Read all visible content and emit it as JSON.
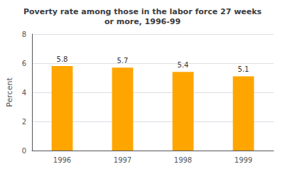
{
  "chart_data": {
    "type": "bar",
    "title": "Poverty rate among those in the labor force 27 weeks\nor more, 1996-99",
    "ylabel": "Percent",
    "categories": [
      "1996",
      "1997",
      "1998",
      "1999"
    ],
    "values": [
      5.8,
      5.7,
      5.4,
      5.1
    ],
    "color": "#FFA500",
    "ylim": [
      0,
      8
    ],
    "yticks": [
      0,
      2,
      4,
      6,
      8
    ],
    "grid": true,
    "data_labels": true
  }
}
